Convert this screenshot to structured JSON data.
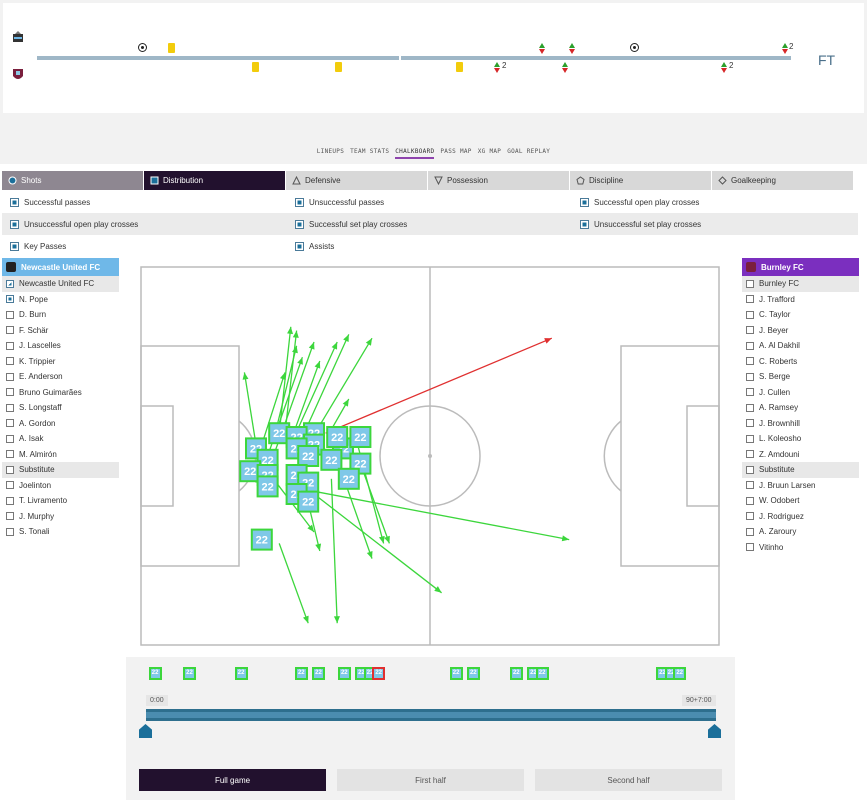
{
  "timeline": {
    "status": "FT",
    "home_sub_count": "2",
    "away_sub_counts": [
      "2",
      "2"
    ]
  },
  "tabs": [
    {
      "label": "LINEUPS",
      "active": false
    },
    {
      "label": "TEAM STATS",
      "active": false
    },
    {
      "label": "CHALKBOARD",
      "active": true
    },
    {
      "label": "PASS MAP",
      "active": false
    },
    {
      "label": "XG MAP",
      "active": false
    },
    {
      "label": "GOAL REPLAY",
      "active": false
    }
  ],
  "categories": [
    {
      "label": "Shots",
      "icon": "circle-icon",
      "state": "hover"
    },
    {
      "label": "Distribution",
      "icon": "square-icon",
      "state": "active"
    },
    {
      "label": "Defensive",
      "icon": "triangle-icon",
      "state": "normal"
    },
    {
      "label": "Possession",
      "icon": "down-triangle-icon",
      "state": "normal"
    },
    {
      "label": "Discipline",
      "icon": "pentagon-icon",
      "state": "normal"
    },
    {
      "label": "Goalkeeping",
      "icon": "diamond-icon",
      "state": "normal"
    }
  ],
  "filters": [
    [
      "Successful passes",
      "Unsuccessful passes",
      "Successful open play crosses"
    ],
    [
      "Unsuccessful open play crosses",
      "Successful set play crosses",
      "Unsuccessful set play crosses"
    ],
    [
      "Key Passes",
      "Assists",
      ""
    ]
  ],
  "home": {
    "team": "Newcastle United FC",
    "color": "#6fb8e8",
    "rows": [
      {
        "label": "Newcastle United FC",
        "grey": true,
        "check": "partial"
      },
      {
        "label": "N. Pope",
        "grey": false,
        "check": "on"
      },
      {
        "label": "D. Burn",
        "grey": false,
        "check": "off"
      },
      {
        "label": "F. Schär",
        "grey": false,
        "check": "off"
      },
      {
        "label": "J. Lascelles",
        "grey": false,
        "check": "off"
      },
      {
        "label": "K. Trippier",
        "grey": false,
        "check": "off"
      },
      {
        "label": "E. Anderson",
        "grey": false,
        "check": "off"
      },
      {
        "label": "Bruno Guimarães",
        "grey": false,
        "check": "off"
      },
      {
        "label": "S. Longstaff",
        "grey": false,
        "check": "off"
      },
      {
        "label": "A. Gordon",
        "grey": false,
        "check": "off"
      },
      {
        "label": "A. Isak",
        "grey": false,
        "check": "off"
      },
      {
        "label": "M. Almirón",
        "grey": false,
        "check": "off"
      },
      {
        "label": "Substitute",
        "grey": true,
        "check": "off"
      },
      {
        "label": "Joelinton",
        "grey": false,
        "check": "off"
      },
      {
        "label": "T. Livramento",
        "grey": false,
        "check": "off"
      },
      {
        "label": "J. Murphy",
        "grey": false,
        "check": "off"
      },
      {
        "label": "S. Tonali",
        "grey": false,
        "check": "off"
      }
    ]
  },
  "away": {
    "team": "Burnley FC",
    "color": "#7b2fbf",
    "rows": [
      {
        "label": "Burnley FC",
        "grey": true,
        "check": "off"
      },
      {
        "label": "J. Trafford",
        "grey": false,
        "check": "off"
      },
      {
        "label": "C. Taylor",
        "grey": false,
        "check": "off"
      },
      {
        "label": "J. Beyer",
        "grey": false,
        "check": "off"
      },
      {
        "label": "A. Al Dakhil",
        "grey": false,
        "check": "off"
      },
      {
        "label": "C. Roberts",
        "grey": false,
        "check": "off"
      },
      {
        "label": "S. Berge",
        "grey": false,
        "check": "off"
      },
      {
        "label": "J. Cullen",
        "grey": false,
        "check": "off"
      },
      {
        "label": "A. Ramsey",
        "grey": false,
        "check": "off"
      },
      {
        "label": "J. Brownhill",
        "grey": false,
        "check": "off"
      },
      {
        "label": "L. Koleosho",
        "grey": false,
        "check": "off"
      },
      {
        "label": "Z. Amdouni",
        "grey": false,
        "check": "off"
      },
      {
        "label": "Substitute",
        "grey": true,
        "check": "off"
      },
      {
        "label": "J. Bruun Larsen",
        "grey": false,
        "check": "off"
      },
      {
        "label": "W. Odobert",
        "grey": false,
        "check": "off"
      },
      {
        "label": "J. Rodriguez",
        "grey": false,
        "check": "off"
      },
      {
        "label": "A. Zaroury",
        "grey": false,
        "check": "off"
      },
      {
        "label": "Vitinho",
        "grey": false,
        "check": "off"
      }
    ]
  },
  "player_number": "22",
  "colors": {
    "success": "#3cd63c",
    "fail": "#e03030",
    "marker": "#7fc8e8"
  },
  "passes": [
    {
      "x1": 24,
      "y1": 44,
      "x2": 26,
      "y2": 16,
      "ok": true
    },
    {
      "x1": 25,
      "y1": 44,
      "x2": 27,
      "y2": 17,
      "ok": true
    },
    {
      "x1": 20,
      "y1": 47,
      "x2": 18,
      "y2": 28,
      "ok": true
    },
    {
      "x1": 21,
      "y1": 47,
      "x2": 25,
      "y2": 28,
      "ok": true
    },
    {
      "x1": 22,
      "y1": 50,
      "x2": 28,
      "y2": 24,
      "ok": true
    },
    {
      "x1": 23,
      "y1": 46,
      "x2": 27,
      "y2": 21,
      "ok": true
    },
    {
      "x1": 23,
      "y1": 50,
      "x2": 30,
      "y2": 20,
      "ok": true
    },
    {
      "x1": 26,
      "y1": 46,
      "x2": 31,
      "y2": 25,
      "ok": true
    },
    {
      "x1": 26,
      "y1": 47,
      "x2": 34,
      "y2": 20,
      "ok": true
    },
    {
      "x1": 28,
      "y1": 45,
      "x2": 36,
      "y2": 18,
      "ok": true
    },
    {
      "x1": 29,
      "y1": 47,
      "x2": 40,
      "y2": 19,
      "ok": true
    },
    {
      "x1": 32,
      "y1": 44,
      "x2": 71,
      "y2": 19,
      "ok": false
    },
    {
      "x1": 33,
      "y1": 43,
      "x2": 36,
      "y2": 35,
      "ok": true
    },
    {
      "x1": 37,
      "y1": 44,
      "x2": 42,
      "y2": 73,
      "ok": true
    },
    {
      "x1": 38,
      "y1": 52,
      "x2": 43,
      "y2": 73,
      "ok": true
    },
    {
      "x1": 34,
      "y1": 51,
      "x2": 40,
      "y2": 77,
      "ok": true
    },
    {
      "x1": 29,
      "y1": 59,
      "x2": 74,
      "y2": 72,
      "ok": true
    },
    {
      "x1": 30,
      "y1": 60,
      "x2": 52,
      "y2": 86,
      "ok": true
    },
    {
      "x1": 23,
      "y1": 56,
      "x2": 30,
      "y2": 70,
      "ok": true
    },
    {
      "x1": 28,
      "y1": 56,
      "x2": 31,
      "y2": 75,
      "ok": true
    },
    {
      "x1": 33,
      "y1": 56,
      "x2": 34,
      "y2": 94,
      "ok": true
    },
    {
      "x1": 24,
      "y1": 73,
      "x2": 29,
      "y2": 94,
      "ok": true
    },
    {
      "x1": 20,
      "y1": 57,
      "x2": 20,
      "y2": 52,
      "ok": true
    }
  ],
  "markers": [
    {
      "x": 24,
      "y": 44
    },
    {
      "x": 30,
      "y": 44
    },
    {
      "x": 27,
      "y": 45
    },
    {
      "x": 30,
      "y": 47
    },
    {
      "x": 20,
      "y": 48
    },
    {
      "x": 27,
      "y": 48
    },
    {
      "x": 35,
      "y": 48
    },
    {
      "x": 29,
      "y": 50
    },
    {
      "x": 22,
      "y": 51
    },
    {
      "x": 33,
      "y": 51
    },
    {
      "x": 19,
      "y": 54
    },
    {
      "x": 38,
      "y": 52
    },
    {
      "x": 22,
      "y": 55
    },
    {
      "x": 27,
      "y": 55
    },
    {
      "x": 29,
      "y": 57
    },
    {
      "x": 36,
      "y": 56
    },
    {
      "x": 22,
      "y": 58
    },
    {
      "x": 27,
      "y": 60
    },
    {
      "x": 29,
      "y": 62
    },
    {
      "x": 38,
      "y": 45
    },
    {
      "x": 21,
      "y": 72
    },
    {
      "x": 34,
      "y": 45
    }
  ],
  "timeline_events": [
    {
      "min": 1,
      "ok": true
    },
    {
      "min": 5,
      "ok": true
    },
    {
      "min": 11,
      "ok": true
    },
    {
      "min": 18,
      "ok": true
    },
    {
      "min": 20,
      "ok": true
    },
    {
      "min": 23,
      "ok": true
    },
    {
      "min": 25,
      "ok": true
    },
    {
      "min": 26,
      "ok": true
    },
    {
      "min": 27,
      "ok": false
    },
    {
      "min": 36,
      "ok": true
    },
    {
      "min": 38,
      "ok": true
    },
    {
      "min": 43,
      "ok": true
    },
    {
      "min": 45,
      "ok": true
    },
    {
      "min": 46,
      "ok": true
    },
    {
      "min": 60,
      "ok": true
    },
    {
      "min": 61,
      "ok": true
    },
    {
      "min": 62,
      "ok": true
    }
  ],
  "slider": {
    "start_label": "0:00",
    "end_label": "90+7:00"
  },
  "buttons": [
    {
      "label": "Full game",
      "active": true
    },
    {
      "label": "First half",
      "active": false
    },
    {
      "label": "Second half",
      "active": false
    }
  ]
}
